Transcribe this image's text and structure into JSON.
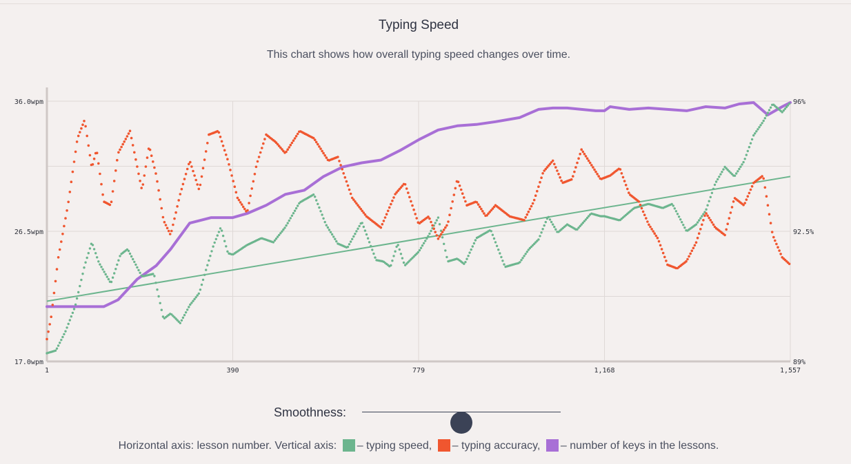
{
  "page": {
    "title": "Typing Speed",
    "subtitle": "This chart shows how overall typing speed changes over time."
  },
  "colors": {
    "speed": "#6cb58e",
    "accuracy": "#f0562f",
    "keys": "#a86fd6",
    "grid": "#ded8d6",
    "axis": "#cfc8c6"
  },
  "smoothness": {
    "label": "Smoothness:",
    "value": 0.5
  },
  "legend": {
    "prefix": "Horizontal axis: lesson number. Vertical axis:",
    "speed_label": "– typing speed,",
    "accuracy_label": "– typing accuracy,",
    "keys_label": "– number of keys in the lessons."
  },
  "chart_data": {
    "type": "scatter",
    "title": "Typing Speed",
    "xlabel": "lesson number",
    "x_ticks": [
      "1",
      "390",
      "779",
      "1,168",
      "1,557"
    ],
    "x_range": [
      1,
      1557
    ],
    "y_left": {
      "label": "typing speed",
      "range": [
        17.0,
        36.0
      ],
      "ticks": [
        "17.0wpm",
        "26.5wpm",
        "36.0wpm"
      ]
    },
    "y_right": {
      "label": "typing accuracy",
      "range": [
        89,
        96
      ],
      "ticks": [
        "89%",
        "92.5%",
        "96%"
      ]
    },
    "trend_line": {
      "series": "typing speed",
      "x": [
        1,
        1557
      ],
      "y": [
        21.4,
        30.5
      ]
    },
    "series": [
      {
        "name": "typing speed",
        "axis": "left",
        "x": [
          1,
          20,
          40,
          60,
          80,
          95,
          110,
          135,
          155,
          170,
          200,
          225,
          245,
          260,
          280,
          300,
          320,
          335,
          350,
          365,
          380,
          390,
          420,
          450,
          475,
          500,
          530,
          560,
          585,
          610,
          630,
          660,
          690,
          705,
          720,
          735,
          750,
          779,
          800,
          820,
          840,
          860,
          875,
          900,
          930,
          960,
          990,
          1010,
          1030,
          1050,
          1070,
          1090,
          1110,
          1140,
          1160,
          1168,
          1200,
          1230,
          1260,
          1290,
          1310,
          1340,
          1360,
          1380,
          1400,
          1420,
          1440,
          1460,
          1480,
          1500,
          1520,
          1540,
          1557
        ],
        "y": [
          17.6,
          17.8,
          19.2,
          21.0,
          24.0,
          25.7,
          24.2,
          22.7,
          24.8,
          25.2,
          23.2,
          23.4,
          20.1,
          20.5,
          19.8,
          21.1,
          22.0,
          23.8,
          25.5,
          26.8,
          24.9,
          24.8,
          25.5,
          26.0,
          25.7,
          26.8,
          28.6,
          29.2,
          27.0,
          25.6,
          25.3,
          27.2,
          24.4,
          24.3,
          23.9,
          25.6,
          24.0,
          25.0,
          26.2,
          27.5,
          24.3,
          24.5,
          24.1,
          26.0,
          26.6,
          23.9,
          24.2,
          25.2,
          25.9,
          27.6,
          26.4,
          27.0,
          26.6,
          27.8,
          27.6,
          27.6,
          27.3,
          28.2,
          28.5,
          28.2,
          28.5,
          26.5,
          27.0,
          28.0,
          30.0,
          31.2,
          30.5,
          31.6,
          33.5,
          34.5,
          35.8,
          35.2,
          35.9
        ]
      },
      {
        "name": "typing accuracy",
        "axis": "right",
        "x": [
          1,
          10,
          25,
          45,
          65,
          80,
          95,
          105,
          120,
          135,
          150,
          175,
          200,
          215,
          230,
          245,
          260,
          280,
          300,
          320,
          340,
          360,
          380,
          400,
          420,
          440,
          460,
          480,
          500,
          530,
          560,
          590,
          610,
          640,
          670,
          700,
          730,
          750,
          779,
          800,
          820,
          840,
          860,
          880,
          900,
          920,
          940,
          970,
          1000,
          1020,
          1040,
          1060,
          1080,
          1100,
          1120,
          1140,
          1160,
          1180,
          1200,
          1220,
          1240,
          1260,
          1280,
          1300,
          1320,
          1340,
          1360,
          1380,
          1400,
          1420,
          1440,
          1460,
          1480,
          1500,
          1520,
          1540,
          1557
        ],
        "y": [
          89.6,
          90.2,
          91.8,
          93.2,
          95.0,
          95.5,
          94.2,
          94.7,
          93.3,
          93.2,
          94.6,
          95.2,
          93.6,
          94.8,
          94.0,
          92.8,
          92.4,
          93.5,
          94.4,
          93.6,
          95.1,
          95.2,
          94.4,
          93.4,
          93.0,
          94.3,
          95.1,
          94.9,
          94.6,
          95.2,
          95.0,
          94.4,
          94.5,
          93.4,
          92.9,
          92.6,
          93.5,
          93.8,
          92.7,
          92.9,
          92.3,
          92.7,
          93.9,
          93.2,
          93.3,
          92.9,
          93.2,
          92.9,
          92.8,
          93.3,
          94.1,
          94.4,
          93.8,
          93.9,
          94.7,
          94.3,
          93.9,
          94.0,
          94.2,
          93.5,
          93.3,
          92.7,
          92.3,
          91.6,
          91.5,
          91.7,
          92.2,
          93.0,
          92.6,
          92.4,
          93.4,
          93.2,
          93.8,
          94.0,
          92.4,
          91.8,
          91.6
        ]
      },
      {
        "name": "number of keys in the lessons",
        "axis": "left",
        "x": [
          1,
          60,
          120,
          150,
          190,
          230,
          260,
          300,
          345,
          390,
          420,
          460,
          500,
          540,
          580,
          620,
          660,
          700,
          740,
          780,
          820,
          860,
          900,
          940,
          990,
          1030,
          1060,
          1090,
          1120,
          1150,
          1168,
          1180,
          1220,
          1260,
          1300,
          1340,
          1380,
          1420,
          1450,
          1480,
          1510,
          1540,
          1557
        ],
        "y": [
          21.0,
          21.0,
          21.0,
          21.5,
          23.0,
          24.0,
          25.2,
          27.1,
          27.5,
          27.5,
          27.8,
          28.4,
          29.2,
          29.5,
          30.5,
          31.2,
          31.5,
          31.7,
          32.4,
          33.2,
          33.9,
          34.2,
          34.3,
          34.5,
          34.8,
          35.4,
          35.5,
          35.5,
          35.4,
          35.3,
          35.3,
          35.6,
          35.4,
          35.5,
          35.4,
          35.3,
          35.6,
          35.5,
          35.8,
          35.9,
          35.0,
          35.6,
          35.9
        ]
      }
    ]
  }
}
